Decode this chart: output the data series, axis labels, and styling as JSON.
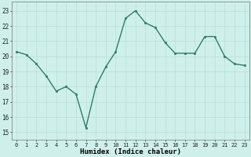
{
  "x": [
    0,
    1,
    2,
    3,
    4,
    5,
    6,
    7,
    8,
    9,
    10,
    11,
    12,
    13,
    14,
    15,
    16,
    17,
    18,
    19,
    20,
    21,
    22,
    23
  ],
  "y": [
    20.3,
    20.1,
    19.5,
    18.7,
    17.7,
    18.0,
    17.5,
    15.3,
    18.0,
    19.3,
    20.3,
    22.5,
    23.0,
    22.2,
    21.9,
    20.9,
    20.2,
    20.2,
    20.2,
    21.3,
    21.3,
    20.0,
    19.5,
    19.4
  ],
  "line_color": "#2d7d6e",
  "marker_color": "#2d7d6e",
  "bg_color": "#cff0ea",
  "grid_color": "#b8ddd8",
  "xlabel": "Humidex (Indice chaleur)",
  "yticks": [
    15,
    16,
    17,
    18,
    19,
    20,
    21,
    22,
    23
  ],
  "xlim": [
    -0.5,
    23.5
  ],
  "ylim": [
    14.5,
    23.6
  ],
  "xticks": [
    0,
    1,
    2,
    3,
    4,
    5,
    6,
    7,
    8,
    9,
    10,
    11,
    12,
    13,
    14,
    15,
    16,
    17,
    18,
    19,
    20,
    21,
    22,
    23
  ]
}
